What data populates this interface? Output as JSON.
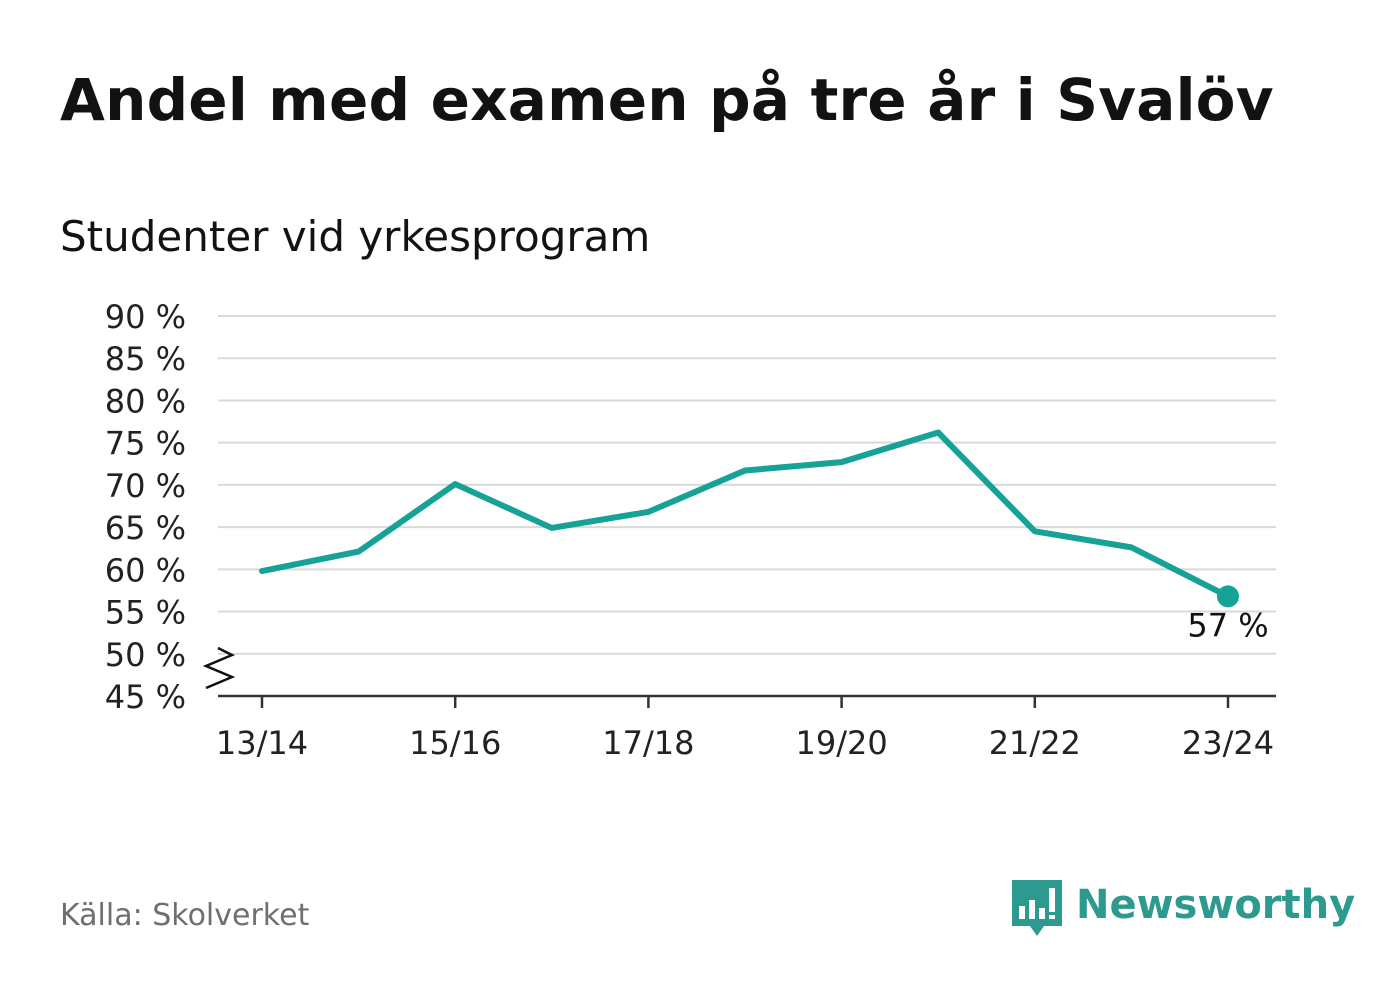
{
  "header": {
    "title": "Andel med examen på tre år i Svalöv",
    "subtitle": "Studenter vid yrkesprogram"
  },
  "chart_data": {
    "type": "line",
    "title": "Andel med examen på tre år i Svalöv",
    "subtitle": "Studenter vid yrkesprogram",
    "x": [
      "13/14",
      "14/15",
      "15/16",
      "16/17",
      "17/18",
      "18/19",
      "19/20",
      "20/21",
      "21/22",
      "22/23",
      "23/24"
    ],
    "x_tick_labels": [
      "13/14",
      "15/16",
      "17/18",
      "19/20",
      "21/22",
      "23/24"
    ],
    "series": [
      {
        "values": [
          59.8,
          62.1,
          70.1,
          64.9,
          66.8,
          71.7,
          72.7,
          76.2,
          64.5,
          62.6,
          56.8
        ],
        "color": "#16a297"
      }
    ],
    "ylim": [
      45,
      90
    ],
    "y_ticks": [
      45,
      50,
      55,
      60,
      65,
      70,
      75,
      80,
      85,
      90
    ],
    "y_tick_labels": [
      "45 %",
      "50 %",
      "55 %",
      "60 %",
      "65 %",
      "70 %",
      "75 %",
      "80 %",
      "85 %",
      "90 %"
    ],
    "y_axis_break": true,
    "grid": true,
    "last_value_label": "57 %",
    "xlabel": "",
    "ylabel": ""
  },
  "footer": {
    "source": "Källa: Skolverket",
    "brand": "Newsworthy",
    "brand_icon": "bar-chart-speech-bubble-icon"
  },
  "colors": {
    "line": "#16a297",
    "grid": "#d9d9d9",
    "axis": "#333333",
    "brand": "#2c9a8e",
    "source_text": "#6f6f6f"
  }
}
